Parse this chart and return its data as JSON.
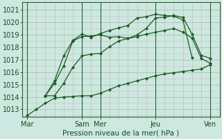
{
  "bg_color": "#cce8e0",
  "grid_color_major": "#a8c8c0",
  "grid_color_minor": "#d4a0a0",
  "line_color": "#1a5a20",
  "xlabel": "Pression niveau de la mer( hPa )",
  "ylim": [
    1012.4,
    1021.6
  ],
  "yticks": [
    1013,
    1014,
    1015,
    1016,
    1017,
    1018,
    1019,
    1020,
    1021
  ],
  "xtick_labels": [
    "Mar",
    "Sam",
    "Mer",
    "Jeu",
    "Ven"
  ],
  "xtick_positions": [
    0,
    6,
    8,
    14,
    20
  ],
  "vline_positions": [
    0,
    6,
    8,
    14,
    20
  ],
  "xlim": [
    -0.5,
    21
  ],
  "series": [
    {
      "x": [
        0,
        1,
        2,
        3,
        4,
        5,
        6,
        7,
        8,
        9,
        10,
        11,
        12,
        13,
        14,
        15,
        16,
        17,
        18,
        19,
        20
      ],
      "y": [
        1012.5,
        1013.0,
        1013.5,
        1013.9,
        1014.0,
        1014.05,
        1014.1,
        1014.1,
        1014.3,
        1014.6,
        1014.9,
        1015.1,
        1015.3,
        1015.5,
        1015.7,
        1015.85,
        1015.95,
        1016.05,
        1016.15,
        1016.25,
        1016.6
      ]
    },
    {
      "x": [
        2,
        3,
        4,
        5,
        6,
        7,
        8,
        9,
        10,
        11,
        12,
        13,
        14,
        15,
        16,
        17,
        18,
        19,
        20
      ],
      "y": [
        1014.1,
        1014.1,
        1015.1,
        1016.4,
        1017.3,
        1017.45,
        1017.5,
        1018.05,
        1018.5,
        1018.7,
        1018.85,
        1019.05,
        1019.2,
        1019.35,
        1019.5,
        1019.2,
        1018.75,
        1017.1,
        1016.7
      ]
    },
    {
      "x": [
        2,
        3,
        4,
        5,
        6,
        7,
        8,
        9,
        10,
        11,
        12,
        13,
        14,
        15,
        16,
        17,
        18,
        19,
        20
      ],
      "y": [
        1014.1,
        1015.1,
        1016.5,
        1018.5,
        1018.85,
        1018.9,
        1019.0,
        1018.8,
        1018.85,
        1018.7,
        1019.0,
        1019.5,
        1020.35,
        1020.4,
        1020.55,
        1020.4,
        1019.05,
        1017.35,
        1017.1
      ]
    },
    {
      "x": [
        2,
        3,
        4,
        5,
        6,
        7,
        8,
        9,
        10,
        11,
        12,
        13,
        14,
        15,
        16,
        17,
        18
      ],
      "y": [
        1014.1,
        1015.3,
        1017.3,
        1018.55,
        1019.05,
        1018.8,
        1019.1,
        1019.35,
        1019.55,
        1019.75,
        1020.35,
        1020.45,
        1020.65,
        1020.55,
        1020.5,
        1020.2,
        1017.15
      ]
    }
  ]
}
